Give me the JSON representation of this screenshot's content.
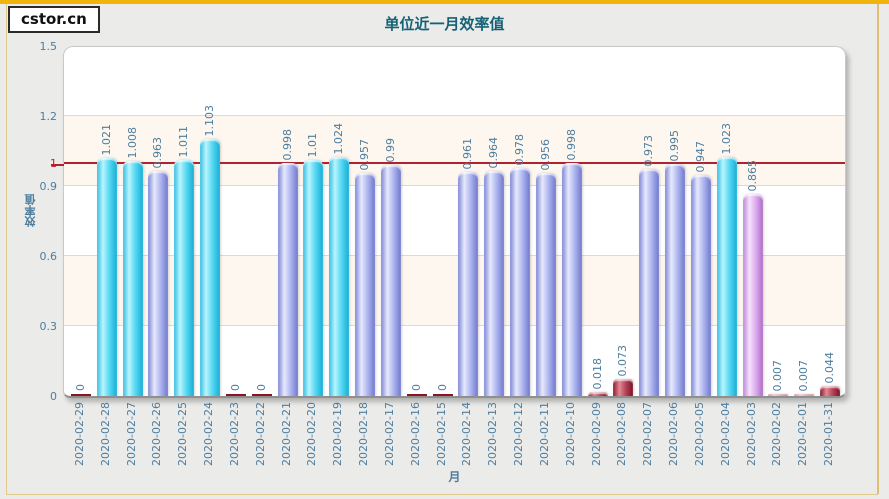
{
  "logo": {
    "text": "cstor.cn"
  },
  "header": {
    "title": "单位近一月效率值"
  },
  "chart_data": {
    "type": "bar",
    "title": "单位近一月效率值",
    "xlabel": "月",
    "ylabel": "效率值",
    "ylim": [
      0,
      1.5
    ],
    "ytick_values": [
      1.5,
      1.2,
      1,
      0.9,
      0.6,
      0.3,
      0
    ],
    "ytick_labels": [
      "1.5",
      "1.2",
      "1",
      "0.9",
      "0.6",
      "0.3",
      "0"
    ],
    "highlighted_tick": "1",
    "reference_line_value": 1,
    "grid_values": [
      0.3,
      0.6,
      0.9,
      1.2
    ],
    "band_ranges": [
      [
        0.3,
        0.6
      ],
      [
        0.9,
        1.2
      ]
    ],
    "grid": true,
    "legend_position": "none",
    "categories": [
      "2020-02-29",
      "2020-02-28",
      "2020-02-27",
      "2020-02-26",
      "2020-02-25",
      "2020-02-24",
      "2020-02-23",
      "2020-02-22",
      "2020-02-21",
      "2020-02-20",
      "2020-02-19",
      "2020-02-18",
      "2020-02-17",
      "2020-02-16",
      "2020-02-15",
      "2020-02-14",
      "2020-02-13",
      "2020-02-12",
      "2020-02-11",
      "2020-02-10",
      "2020-02-09",
      "2020-02-08",
      "2020-02-07",
      "2020-02-06",
      "2020-02-05",
      "2020-02-04",
      "2020-02-03",
      "2020-02-02",
      "2020-02-01",
      "2020-01-31"
    ],
    "values": [
      0,
      1.021,
      1.008,
      0.963,
      1.011,
      1.103,
      0,
      0,
      0.998,
      1.01,
      1.024,
      0.957,
      0.99,
      0,
      0,
      0.961,
      0.964,
      0.978,
      0.956,
      0.998,
      0.018,
      0.073,
      0.973,
      0.995,
      0.947,
      1.023,
      0.865,
      0.007,
      0.007,
      0.044
    ],
    "value_labels": [
      "0",
      "1.021",
      "1.008",
      "0.963",
      "1.011",
      "1.103",
      "0",
      "0",
      "0.998",
      "1.01",
      "1.024",
      "0.957",
      "0.99",
      "0",
      "0",
      "0.961",
      "0.964",
      "0.978",
      "0.956",
      "0.998",
      "0.018",
      "0.073",
      "0.973",
      "0.995",
      "0.947",
      "1.023",
      "0.865",
      "0.007",
      "0.007",
      "0.044"
    ],
    "colors": {
      "bar_above_1": "#35bfe2",
      "bar_0_9_to_1": "#7d86d6",
      "bar_0_1_to_0_9": "#bd85d6",
      "bar_below_0_1": "#8c1830",
      "reference_line": "#b0232e",
      "grid_line": "#f6cfc5",
      "band_fill": "#fdf7ef",
      "tick_text": "#4d7d9e",
      "tick_text_highlight": "#c02020",
      "title_text": "#156278",
      "accent_gold": "#f0b40c"
    }
  }
}
